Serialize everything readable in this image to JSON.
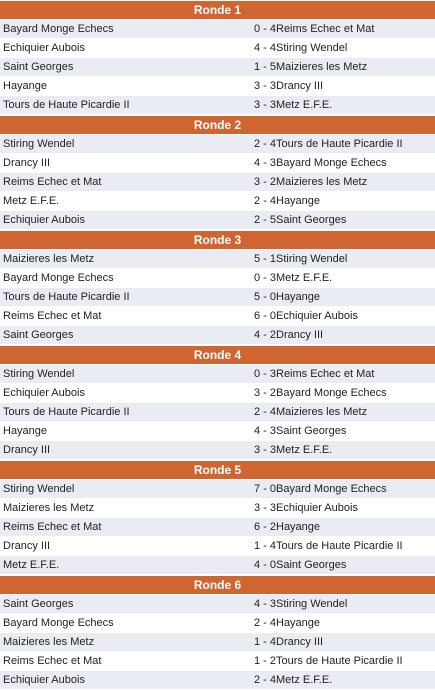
{
  "rounds": [
    {
      "title": "Ronde 1",
      "matches": [
        {
          "home": "Bayard Monge Echecs",
          "score": "0 - 4",
          "away": "Reims Echec et Mat"
        },
        {
          "home": "Echiquier Aubois",
          "score": "4 - 4",
          "away": "Stiring Wendel"
        },
        {
          "home": "Saint Georges",
          "score": "1 - 5",
          "away": "Maizieres les Metz"
        },
        {
          "home": "Hayange",
          "score": "3 - 3",
          "away": "Drancy III"
        },
        {
          "home": "Tours de Haute Picardie II",
          "score": "3 - 3",
          "away": "Metz E.F.E."
        }
      ]
    },
    {
      "title": "Ronde 2",
      "matches": [
        {
          "home": "Stiring Wendel",
          "score": "2 - 4",
          "away": "Tours de Haute Picardie II"
        },
        {
          "home": "Drancy III",
          "score": "4 - 3",
          "away": "Bayard Monge Echecs"
        },
        {
          "home": "Reims Echec et Mat",
          "score": "3 - 2",
          "away": "Maizieres les Metz"
        },
        {
          "home": "Metz E.F.E.",
          "score": "2 - 4",
          "away": "Hayange"
        },
        {
          "home": "Echiquier Aubois",
          "score": "2 - 5",
          "away": "Saint Georges"
        }
      ]
    },
    {
      "title": "Ronde 3",
      "matches": [
        {
          "home": "Maizieres les Metz",
          "score": "5 - 1",
          "away": "Stiring Wendel"
        },
        {
          "home": "Bayard Monge Echecs",
          "score": "0 - 3",
          "away": "Metz E.F.E."
        },
        {
          "home": "Tours de Haute Picardie II",
          "score": "5 - 0",
          "away": "Hayange"
        },
        {
          "home": "Reims Echec et Mat",
          "score": "6 - 0",
          "away": "Echiquier Aubois"
        },
        {
          "home": "Saint Georges",
          "score": "4 - 2",
          "away": "Drancy III"
        }
      ]
    },
    {
      "title": "Ronde 4",
      "matches": [
        {
          "home": "Stiring Wendel",
          "score": "0 - 3",
          "away": "Reims Echec et Mat"
        },
        {
          "home": "Echiquier Aubois",
          "score": "3 - 2",
          "away": "Bayard Monge Echecs"
        },
        {
          "home": "Tours de Haute Picardie II",
          "score": "2 - 4",
          "away": "Maizieres les Metz"
        },
        {
          "home": "Hayange",
          "score": "4 - 3",
          "away": "Saint Georges"
        },
        {
          "home": "Drancy III",
          "score": "3 - 3",
          "away": "Metz E.F.E."
        }
      ]
    },
    {
      "title": "Ronde 5",
      "matches": [
        {
          "home": "Stiring Wendel",
          "score": "7 - 0",
          "away": "Bayard Monge Echecs"
        },
        {
          "home": "Maizieres les Metz",
          "score": "3 - 3",
          "away": "Echiquier Aubois"
        },
        {
          "home": "Reims Echec et Mat",
          "score": "6 - 2",
          "away": "Hayange"
        },
        {
          "home": "Drancy III",
          "score": "1 - 4",
          "away": "Tours de Haute Picardie II"
        },
        {
          "home": "Metz E.F.E.",
          "score": "4 - 0",
          "away": "Saint Georges"
        }
      ]
    },
    {
      "title": "Ronde 6",
      "matches": [
        {
          "home": "Saint Georges",
          "score": "4 - 3",
          "away": "Stiring Wendel"
        },
        {
          "home": "Bayard Monge Echecs",
          "score": "2 - 4",
          "away": "Hayange"
        },
        {
          "home": "Maizieres les Metz",
          "score": "1 - 4",
          "away": "Drancy III"
        },
        {
          "home": "Reims Echec et Mat",
          "score": "1 - 2",
          "away": "Tours de Haute Picardie II"
        },
        {
          "home": "Echiquier Aubois",
          "score": "2 - 4",
          "away": "Metz E.F.E."
        }
      ]
    }
  ]
}
